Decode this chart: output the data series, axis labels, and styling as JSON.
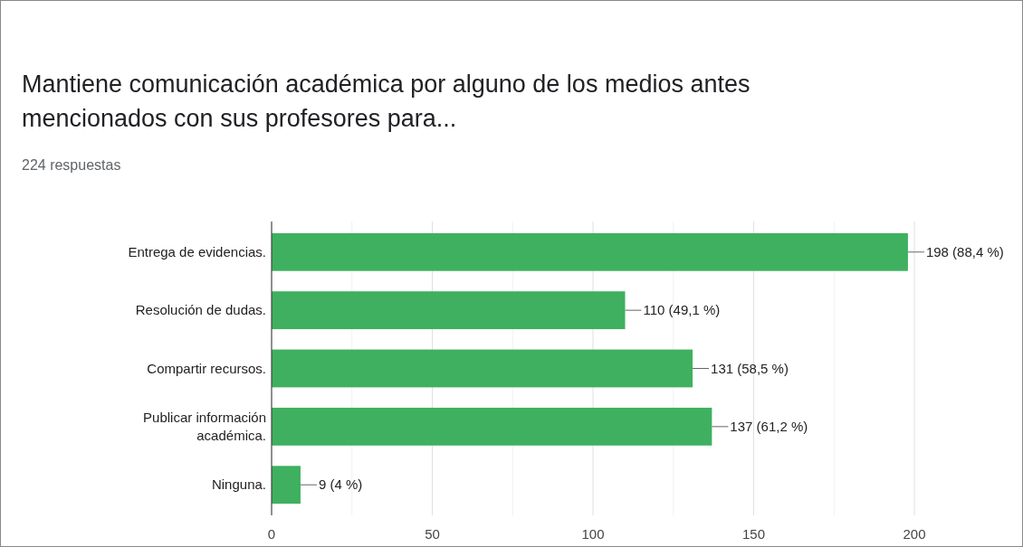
{
  "chart_data": {
    "type": "bar",
    "orientation": "horizontal",
    "title": "Mantiene comunicación académica por alguno de los medios antes mencionados con sus profesores para...",
    "subtitle": "224 respuestas",
    "categories": [
      "Entrega de evidencias.",
      "Resolución de dudas.",
      "Compartir recursos.",
      "Publicar información académica.",
      "Ninguna."
    ],
    "values": [
      198,
      110,
      131,
      137,
      9
    ],
    "value_labels": [
      "198 (88,4 %)",
      "110 (49,1 %)",
      "131 (58,5 %)",
      "137 (61,2 %)",
      "9 (4 %)"
    ],
    "color": "#3fb05f",
    "xlim": [
      0,
      200
    ],
    "xticks": [
      0,
      {
        "value": 25,
        "label": null
      },
      50,
      {
        "value": 75,
        "label": null
      },
      100,
      {
        "value": 125,
        "label": null
      },
      150,
      {
        "value": 175,
        "label": null
      },
      200
    ],
    "grid": "x"
  }
}
